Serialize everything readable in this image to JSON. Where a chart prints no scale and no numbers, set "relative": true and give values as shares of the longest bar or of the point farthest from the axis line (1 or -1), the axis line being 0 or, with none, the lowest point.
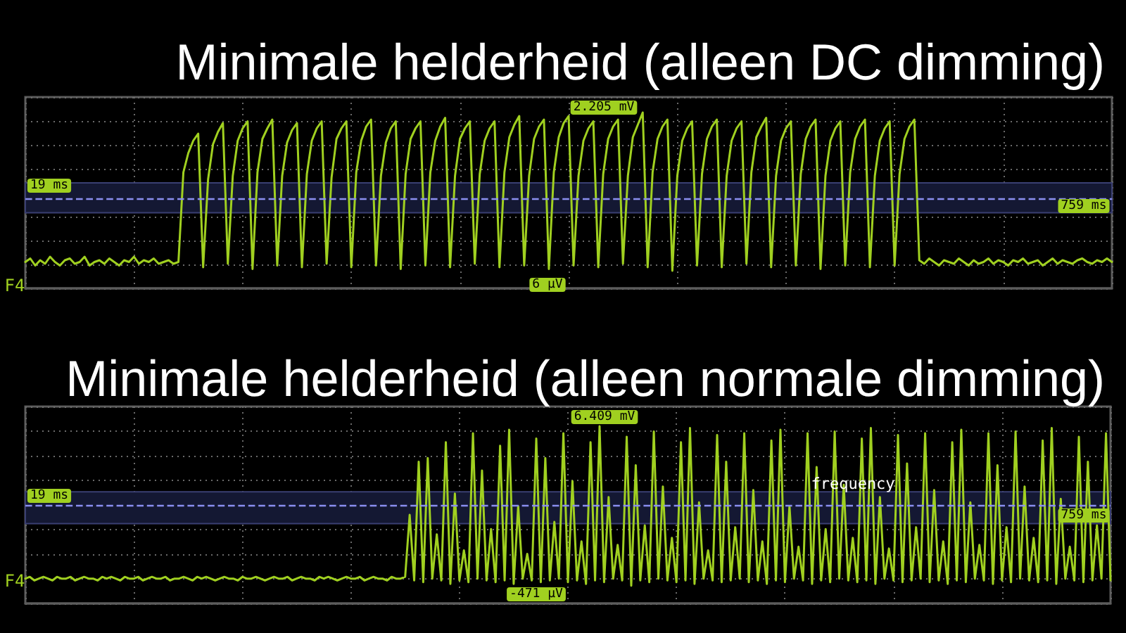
{
  "chart_data": [
    {
      "type": "line",
      "title": "Minimale helderheid (alleen DC dimming)",
      "relative": true,
      "grid": true,
      "marker": "none",
      "categories": [
        null,
        null,
        null,
        null,
        null,
        null,
        null,
        null,
        null,
        null,
        null,
        null,
        null,
        null,
        null,
        null,
        null,
        null,
        null,
        null,
        null,
        null,
        null,
        null,
        null,
        null,
        null,
        null,
        null,
        null,
        null,
        null,
        null,
        null,
        null,
        null,
        null,
        null,
        null,
        null,
        null,
        null,
        null,
        null,
        null,
        null,
        null,
        null,
        null,
        null,
        null,
        null,
        null,
        null,
        null,
        null,
        null,
        null,
        null,
        null,
        null,
        null,
        null,
        null,
        null,
        null,
        null,
        null,
        null,
        null,
        null,
        null,
        null,
        null,
        null,
        null,
        null,
        null,
        null,
        null,
        null,
        null,
        null,
        null,
        null,
        null,
        null,
        null,
        null,
        null,
        null,
        null,
        null,
        null,
        null,
        null,
        null,
        null,
        null,
        null,
        null,
        null,
        null,
        null,
        null,
        null,
        null,
        null,
        null,
        null,
        null,
        null,
        null,
        null,
        null,
        null,
        null,
        null,
        null,
        null,
        null,
        null,
        null,
        null,
        null,
        null,
        null,
        null,
        null,
        null,
        null,
        null,
        null,
        null,
        null,
        null,
        null,
        null,
        null,
        null,
        null,
        null,
        null,
        null,
        null,
        null,
        null,
        null,
        null,
        null,
        null,
        null,
        null,
        null,
        null,
        null,
        null,
        null,
        null,
        null,
        null,
        null,
        null,
        null,
        null,
        null,
        null,
        null,
        null,
        null,
        null,
        null,
        null,
        null,
        null,
        null,
        null,
        null,
        null,
        null,
        null,
        null,
        null,
        null,
        null,
        null,
        null,
        null,
        null,
        null,
        null,
        null,
        null,
        null,
        null,
        null,
        null,
        null,
        null,
        null,
        null,
        null,
        null,
        null,
        null,
        null,
        null,
        null,
        null,
        null,
        null,
        null,
        null,
        null,
        null,
        null,
        null,
        null,
        null,
        null,
        null
      ],
      "series": [
        {
          "color": "#a0d020",
          "values": [
            0.15,
            0.17,
            0.13,
            0.16,
            0.14,
            0.18,
            0.15,
            0.13,
            0.16,
            0.17,
            0.14,
            0.15,
            0.18,
            0.13,
            0.15,
            0.16,
            0.14,
            0.17,
            0.15,
            0.13,
            0.16,
            0.15,
            0.18,
            0.14,
            0.16,
            0.15,
            0.17,
            0.14,
            0.15,
            0.16,
            0.14,
            0.15,
            0.66,
            0.77,
            0.84,
            0.88,
            0.12,
            0.62,
            0.82,
            0.89,
            0.94,
            0.14,
            0.64,
            0.84,
            0.91,
            0.95,
            0.11,
            0.66,
            0.85,
            0.91,
            0.96,
            0.13,
            0.64,
            0.83,
            0.9,
            0.94,
            0.12,
            0.65,
            0.84,
            0.91,
            0.95,
            0.14,
            0.63,
            0.85,
            0.91,
            0.95,
            0.12,
            0.66,
            0.84,
            0.92,
            0.96,
            0.13,
            0.64,
            0.83,
            0.91,
            0.95,
            0.11,
            0.65,
            0.85,
            0.91,
            0.95,
            0.13,
            0.66,
            0.84,
            0.92,
            0.97,
            0.12,
            0.64,
            0.85,
            0.91,
            0.95,
            0.14,
            0.65,
            0.84,
            0.91,
            0.95,
            0.12,
            0.66,
            0.86,
            0.93,
            0.98,
            0.13,
            0.64,
            0.85,
            0.92,
            0.96,
            0.11,
            0.66,
            0.86,
            0.94,
            0.98,
            0.13,
            0.64,
            0.84,
            0.91,
            0.95,
            0.12,
            0.65,
            0.85,
            0.92,
            0.96,
            0.14,
            0.64,
            0.86,
            0.93,
            1,
            0.12,
            0.66,
            0.85,
            0.92,
            0.96,
            0.1,
            0.64,
            0.84,
            0.91,
            0.95,
            0.13,
            0.65,
            0.85,
            0.92,
            0.96,
            0.12,
            0.64,
            0.84,
            0.91,
            0.95,
            0.14,
            0.66,
            0.86,
            0.92,
            0.97,
            0.12,
            0.64,
            0.84,
            0.91,
            0.95,
            0.13,
            0.65,
            0.85,
            0.92,
            0.96,
            0.11,
            0.64,
            0.84,
            0.91,
            0.95,
            0.13,
            0.66,
            0.85,
            0.92,
            0.96,
            0.12,
            0.64,
            0.84,
            0.91,
            0.95,
            0.13,
            0.65,
            0.85,
            0.92,
            0.96,
            0.16,
            0.14,
            0.17,
            0.15,
            0.13,
            0.16,
            0.15,
            0.14,
            0.17,
            0.15,
            0.13,
            0.16,
            0.14,
            0.15,
            0.17,
            0.14,
            0.16,
            0.15,
            0.13,
            0.16,
            0.15,
            0.17,
            0.14,
            0.15,
            0.16,
            0.13,
            0.15,
            0.17,
            0.14,
            0.16,
            0.15,
            0.14,
            0.16,
            0.17,
            0.15,
            0.14,
            0.16,
            0.15,
            0.17,
            0.15
          ]
        }
      ],
      "bands": [
        {
          "axis": "y",
          "from": 0.43,
          "to": 0.6,
          "color": "#141833"
        }
      ],
      "ref_lines": [
        {
          "axis": "y",
          "value": 0.51,
          "color": "#8a8ff0",
          "line_style": "dashed"
        }
      ],
      "annotations": [
        "2.205 mV",
        "6 µV",
        "19 ms",
        "759 ms",
        "F4"
      ]
    },
    {
      "type": "line",
      "title": "Minimale helderheid (alleen normale dimming)",
      "relative": true,
      "grid": true,
      "marker": "none",
      "categories": [
        null,
        null,
        null,
        null,
        null,
        null,
        null,
        null,
        null,
        null,
        null,
        null,
        null,
        null,
        null,
        null,
        null,
        null,
        null,
        null,
        null,
        null,
        null,
        null,
        null,
        null,
        null,
        null,
        null,
        null,
        null,
        null,
        null,
        null,
        null,
        null,
        null,
        null,
        null,
        null,
        null,
        null,
        null,
        null,
        null,
        null,
        null,
        null,
        null,
        null,
        null,
        null,
        null,
        null,
        null,
        null,
        null,
        null,
        null,
        null,
        null,
        null,
        null,
        null,
        null,
        null,
        null,
        null,
        null,
        null,
        null,
        null,
        null,
        null,
        null,
        null,
        null,
        null,
        null,
        null,
        null,
        null,
        null,
        null,
        null,
        null,
        null,
        null,
        null,
        null,
        null,
        null,
        null,
        null,
        null,
        null,
        null,
        null,
        null,
        null,
        null,
        null,
        null,
        null,
        null,
        null,
        null,
        null,
        null,
        null,
        null,
        null,
        null,
        null,
        null,
        null,
        null,
        null,
        null,
        null,
        null,
        null,
        null,
        null,
        null,
        null,
        null,
        null,
        null,
        null,
        null,
        null,
        null,
        null,
        null,
        null,
        null,
        null,
        null,
        null,
        null,
        null,
        null,
        null,
        null,
        null,
        null,
        null,
        null,
        null,
        null,
        null,
        null,
        null,
        null,
        null,
        null,
        null,
        null,
        null,
        null,
        null,
        null,
        null,
        null,
        null,
        null,
        null,
        null,
        null,
        null,
        null,
        null,
        null,
        null,
        null,
        null,
        null,
        null,
        null,
        null,
        null,
        null,
        null,
        null,
        null,
        null,
        null,
        null,
        null,
        null,
        null,
        null,
        null,
        null,
        null,
        null,
        null,
        null,
        null,
        null,
        null,
        null,
        null,
        null,
        null,
        null,
        null,
        null,
        null,
        null,
        null,
        null,
        null,
        null,
        null,
        null,
        null,
        null,
        null,
        null,
        null,
        null,
        null,
        null,
        null,
        null,
        null,
        null,
        null,
        null,
        null,
        null,
        null,
        null,
        null,
        null,
        null,
        null,
        null,
        null
      ],
      "series": [
        {
          "color": "#a0d020",
          "values": [
            0.14,
            0.15,
            0.13,
            0.14,
            0.15,
            0.14,
            0.13,
            0.15,
            0.14,
            0.14,
            0.15,
            0.13,
            0.14,
            0.15,
            0.14,
            0.14,
            0.13,
            0.15,
            0.14,
            0.15,
            0.14,
            0.13,
            0.15,
            0.14,
            0.14,
            0.15,
            0.13,
            0.14,
            0.15,
            0.14,
            0.14,
            0.15,
            0.13,
            0.14,
            0.14,
            0.15,
            0.14,
            0.13,
            0.15,
            0.14,
            0.15,
            0.14,
            0.13,
            0.14,
            0.15,
            0.14,
            0.14,
            0.13,
            0.15,
            0.14,
            0.14,
            0.15,
            0.14,
            0.13,
            0.14,
            0.15,
            0.14,
            0.14,
            0.15,
            0.13,
            0.14,
            0.15,
            0.14,
            0.14,
            0.13,
            0.15,
            0.14,
            0.15,
            0.14,
            0.13,
            0.14,
            0.15,
            0.14,
            0.14,
            0.15,
            0.13,
            0.14,
            0.15,
            0.14,
            0.14,
            0.13,
            0.15,
            0.14,
            0.14,
            0.15,
            0.5,
            0.13,
            0.8,
            0.12,
            0.82,
            0.14,
            0.39,
            0.13,
            0.91,
            0.11,
            0.62,
            0.13,
            0.3,
            0.12,
            0.96,
            0.14,
            0.75,
            0.13,
            0.42,
            0.12,
            0.89,
            0.13,
            0.98,
            0.11,
            0.55,
            0.14,
            0.28,
            0.13,
            0.93,
            0.12,
            0.82,
            0.13,
            0.46,
            0.14,
            0.96,
            0.12,
            0.69,
            0.13,
            0.35,
            0.11,
            0.91,
            0.13,
            1,
            0.12,
            0.6,
            0.14,
            0.33,
            0.13,
            0.94,
            0.1,
            0.78,
            0.13,
            0.44,
            0.12,
            0.97,
            0.14,
            0.66,
            0.13,
            0.37,
            0.12,
            0.91,
            0.13,
            0.99,
            0.11,
            0.57,
            0.14,
            0.3,
            0.13,
            0.95,
            0.12,
            0.8,
            0.13,
            0.43,
            0.14,
            0.96,
            0.12,
            0.64,
            0.13,
            0.35,
            0.11,
            0.92,
            0.13,
            0.98,
            0.12,
            0.55,
            0.14,
            0.32,
            0.13,
            0.96,
            0.11,
            0.77,
            0.13,
            0.42,
            0.12,
            0.97,
            0.14,
            0.67,
            0.13,
            0.37,
            0.12,
            0.93,
            0.13,
            0.99,
            0.11,
            0.6,
            0.14,
            0.31,
            0.13,
            0.95,
            0.12,
            0.79,
            0.13,
            0.43,
            0.14,
            0.96,
            0.12,
            0.64,
            0.13,
            0.35,
            0.11,
            0.91,
            0.13,
            0.98,
            0.12,
            0.57,
            0.14,
            0.33,
            0.13,
            0.96,
            0.11,
            0.78,
            0.13,
            0.43,
            0.12,
            0.97,
            0.14,
            0.66,
            0.13,
            0.37,
            0.12,
            0.92,
            0.13,
            0.99,
            0.11,
            0.59,
            0.14,
            0.32,
            0.13,
            0.94,
            0.12,
            0.8,
            0.13,
            0.44,
            0.14,
            0.96,
            0.13
          ]
        }
      ],
      "bands": [
        {
          "axis": "y",
          "from": 0.45,
          "to": 0.63,
          "color": "#141833"
        }
      ],
      "ref_lines": [
        {
          "axis": "y",
          "value": 0.55,
          "color": "#8a8ff0",
          "line_style": "dashed"
        }
      ],
      "annotations": [
        "6.409 mV",
        "-471 µV",
        "19 ms",
        "759 ms",
        "F4",
        "frequency"
      ]
    }
  ]
}
